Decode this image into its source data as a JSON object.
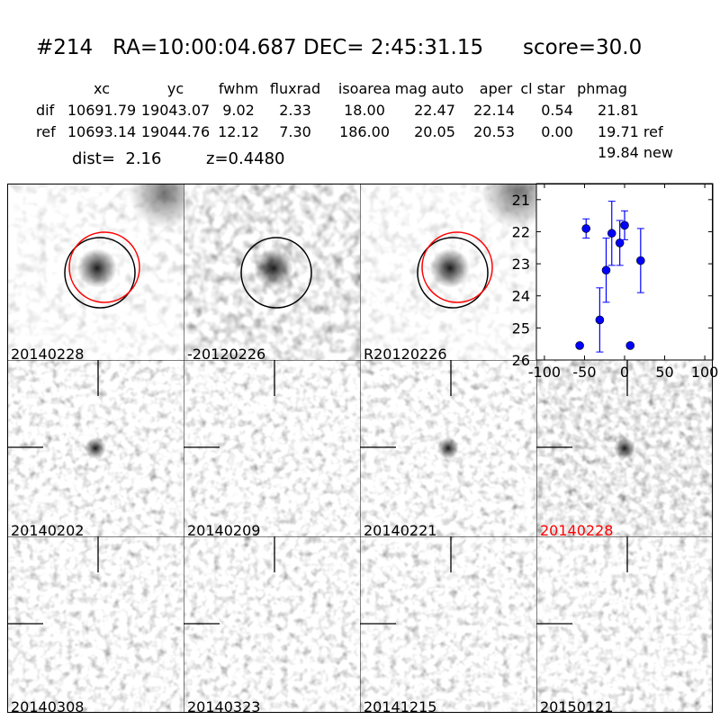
{
  "header": {
    "title": "#214   RA=10:00:04.687 DEC= 2:45:31.15      score=30.0",
    "columns": [
      "xc",
      "yc",
      "fwhm",
      "fluxrad",
      "isoarea",
      "mag auto",
      "aper",
      "cl star",
      "phmag"
    ],
    "rows": [
      {
        "label": "dif",
        "values": [
          "10691.79",
          "19043.07",
          "9.02",
          "2.33",
          "18.00",
          "22.47",
          "22.14",
          "0.54",
          "21.81"
        ]
      },
      {
        "label": "ref",
        "values": [
          "10693.14",
          "19044.76",
          "12.12",
          "7.30",
          "186.00",
          "20.05",
          "20.53",
          "0.00",
          "19.71 ref"
        ]
      }
    ],
    "new_mag": "19.84 new",
    "dist": "dist=  2.16",
    "z": "z=0.4480"
  },
  "panels": [
    {
      "label": "20140228",
      "tone": "light",
      "circles": [
        "black",
        "red"
      ]
    },
    {
      "label": "-20120226",
      "tone": "dark",
      "circles": [
        "black"
      ]
    },
    {
      "label": "R20120226",
      "tone": "light",
      "circles": [
        "black",
        "red"
      ]
    },
    {
      "label": "20140202",
      "tone": "mid",
      "marker": true
    },
    {
      "label": "20140209",
      "tone": "mid",
      "marker": true
    },
    {
      "label": "20140221",
      "tone": "mid",
      "marker": true
    },
    {
      "label": "20140228",
      "tone": "dark",
      "marker": true,
      "label_color": "#ff0000"
    },
    {
      "label": "20140308",
      "tone": "mid",
      "marker": true
    },
    {
      "label": "20140323",
      "tone": "mid",
      "marker": true
    },
    {
      "label": "20141215",
      "tone": "mid",
      "marker": true
    },
    {
      "label": "20150121",
      "tone": "mid",
      "marker": true
    }
  ],
  "chart_data": {
    "type": "scatter",
    "title": "",
    "xlabel": "",
    "ylabel": "",
    "xlim": [
      -110,
      110
    ],
    "ylim": [
      26,
      20.5
    ],
    "y_inverted": true,
    "xticks": [
      -100,
      -50,
      0,
      50,
      100
    ],
    "yticks": [
      21,
      22,
      23,
      24,
      25,
      26
    ],
    "color": "#0000ff",
    "points": [
      {
        "x": -56,
        "y": 25.55,
        "err": 0.05
      },
      {
        "x": -48,
        "y": 21.9,
        "err": 0.3
      },
      {
        "x": -31,
        "y": 24.75,
        "err": 1.0
      },
      {
        "x": -23,
        "y": 23.2,
        "err": 1.0
      },
      {
        "x": -16,
        "y": 22.05,
        "err": 1.0
      },
      {
        "x": -6,
        "y": 22.35,
        "err": 0.7
      },
      {
        "x": 0,
        "y": 21.8,
        "err": 0.45
      },
      {
        "x": 7,
        "y": 25.55,
        "err": 0.05
      },
      {
        "x": 20,
        "y": 22.9,
        "err": 1.0
      }
    ]
  }
}
